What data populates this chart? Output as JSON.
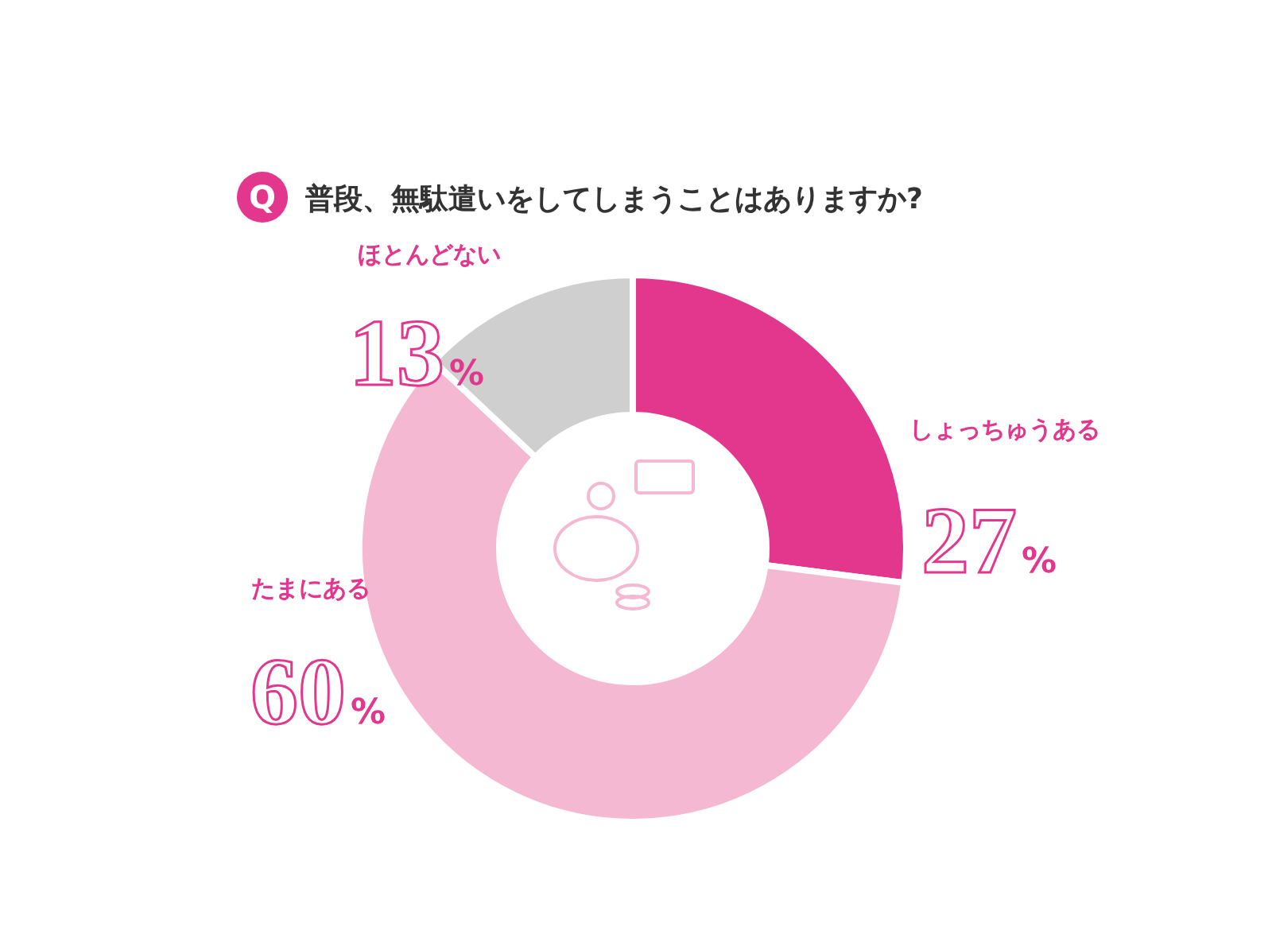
{
  "chart_data": {
    "type": "donut",
    "title": "普段、無駄遣いをしてしまうことはありますか?",
    "annotations": [
      "Q"
    ],
    "categories": [
      "しょっちゅうある",
      "たまにある",
      "ほとんどない"
    ],
    "values": [
      27,
      60,
      13
    ],
    "colors": [
      "#e2378c",
      "#f5b8d2",
      "#cfcfcf"
    ],
    "value_labels": [
      "27%",
      "60%",
      "13%"
    ]
  }
}
